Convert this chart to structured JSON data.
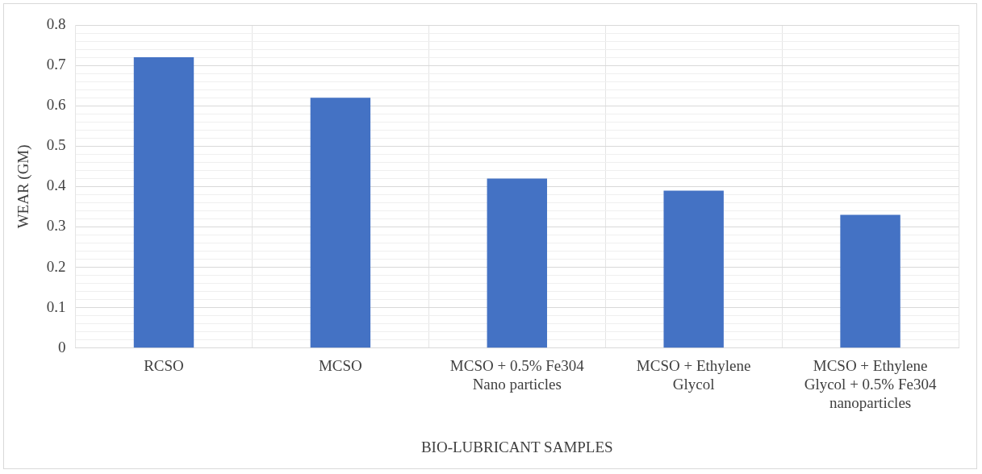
{
  "chart_data": {
    "type": "bar",
    "xlabel": "BIO-LUBRICANT SAMPLES",
    "ylabel": "WEAR (GM)",
    "categories": [
      "RCSO",
      "MCSO",
      "MCSO + 0.5% Fe304 Nano particles",
      "MCSO + Ethylene Glycol",
      "MCSO + Ethylene Glycol + 0.5% Fe304 nanoparticles"
    ],
    "values": [
      0.72,
      0.62,
      0.42,
      0.39,
      0.33
    ],
    "color": "#4472c4",
    "ylim": [
      0,
      0.8
    ],
    "yticks": [
      0,
      {
        "value": 0.02,
        "label": null
      },
      {
        "value": 0.04,
        "label": null
      },
      {
        "value": 0.06,
        "label": null
      },
      {
        "value": 0.08,
        "label": null
      },
      0.1,
      {
        "value": 0.12,
        "label": null
      },
      {
        "value": 0.14,
        "label": null
      },
      {
        "value": 0.16,
        "label": null
      },
      {
        "value": 0.18,
        "label": null
      },
      0.2,
      {
        "value": 0.22,
        "label": null
      },
      {
        "value": 0.24,
        "label": null
      },
      {
        "value": 0.26,
        "label": null
      },
      {
        "value": 0.28,
        "label": null
      },
      0.3,
      {
        "value": 0.32,
        "label": null
      },
      {
        "value": 0.34,
        "label": null
      },
      {
        "value": 0.36,
        "label": null
      },
      {
        "value": 0.38,
        "label": null
      },
      0.4,
      {
        "value": 0.42,
        "label": null
      },
      {
        "value": 0.44,
        "label": null
      },
      {
        "value": 0.46,
        "label": null
      },
      {
        "value": 0.48,
        "label": null
      },
      0.5,
      {
        "value": 0.52,
        "label": null
      },
      {
        "value": 0.54,
        "label": null
      },
      {
        "value": 0.56,
        "label": null
      },
      {
        "value": 0.58,
        "label": null
      },
      0.6,
      {
        "value": 0.62,
        "label": null
      },
      {
        "value": 0.64,
        "label": null
      },
      {
        "value": 0.66,
        "label": null
      },
      {
        "value": 0.68,
        "label": null
      },
      0.7,
      {
        "value": 0.72,
        "label": null
      },
      {
        "value": 0.74,
        "label": null
      },
      {
        "value": 0.76,
        "label": null
      },
      {
        "value": 0.78,
        "label": null
      },
      0.8
    ],
    "grid": true,
    "legend": false
  }
}
